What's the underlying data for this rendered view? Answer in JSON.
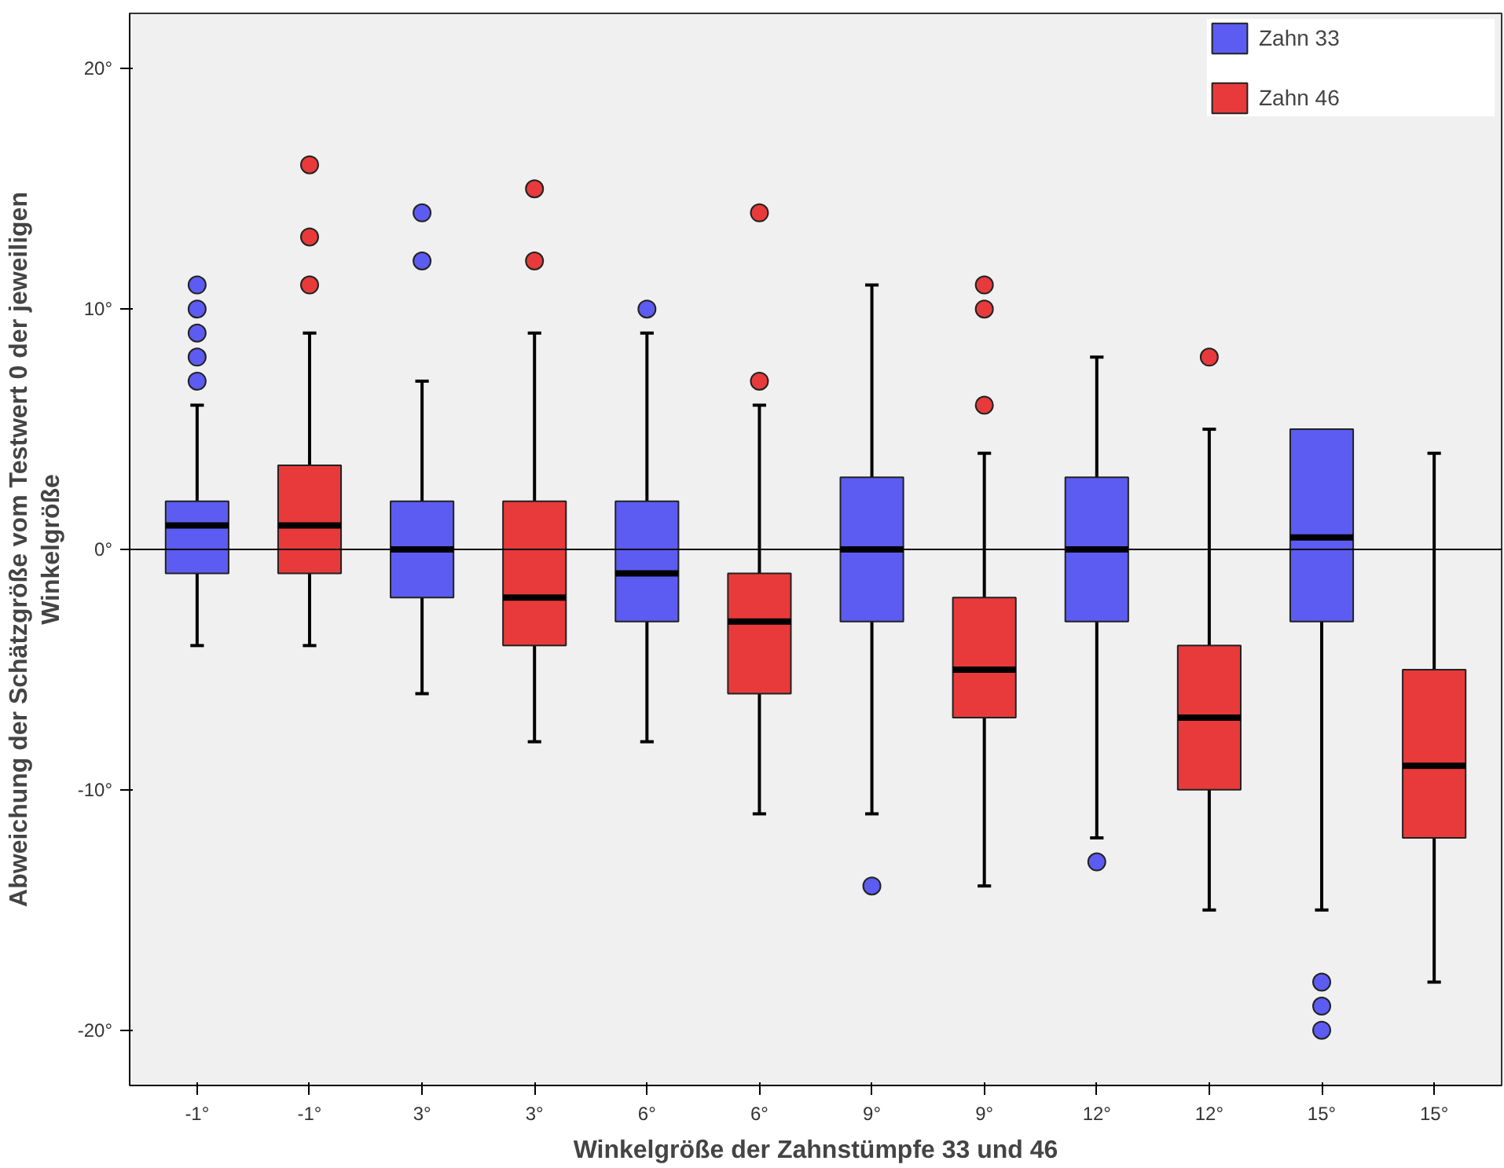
{
  "chart_data": {
    "type": "box",
    "xlabel": "Winkelgröße der Zahnstümpfe 33 und 46",
    "ylabel": "Abweichung der Schätzgröße vom Testwert 0 der jeweiligen\nWinkelgröße",
    "categories": [
      "-1°",
      "-1°",
      "3°",
      "3°",
      "6°",
      "6°",
      "9°",
      "9°",
      "12°",
      "12°",
      "15°",
      "15°"
    ],
    "ylim": [
      -22.3,
      22.3
    ],
    "yticks": [
      {
        "value": -20,
        "label": "-20°"
      },
      {
        "value": -10,
        "label": "-10°"
      },
      {
        "value": 0,
        "label": "0°"
      },
      {
        "value": 10,
        "label": "10°"
      },
      {
        "value": 20,
        "label": "20°"
      }
    ],
    "grid": false,
    "legend": "top right",
    "ref_lines": [
      {
        "axis": "y",
        "value": 0,
        "color": "#000000"
      }
    ],
    "series": [
      {
        "name": "Zahn 33",
        "color": "#5c5cf2",
        "boxes": [
          {
            "low": -4,
            "q1": -1,
            "median": 1,
            "q3": 2,
            "high": 6,
            "outliers": [
              7,
              8,
              9,
              10,
              11
            ]
          },
          null,
          {
            "low": -6,
            "q1": -2,
            "median": 0,
            "q3": 2,
            "high": 7,
            "outliers": [
              12,
              14
            ]
          },
          null,
          {
            "low": -8,
            "q1": -3,
            "median": -1,
            "q3": 2,
            "high": 9,
            "outliers": [
              10
            ]
          },
          null,
          {
            "low": -11,
            "q1": -3,
            "median": 0,
            "q3": 3,
            "high": 11,
            "outliers": [
              -14
            ]
          },
          null,
          {
            "low": -12,
            "q1": -3,
            "median": 0,
            "q3": 3,
            "high": 8,
            "outliers": [
              -13
            ]
          },
          null,
          {
            "low": -15,
            "q1": -3,
            "median": 0.5,
            "q3": 5,
            "high": 5,
            "outliers": [
              -18,
              -19,
              -20
            ]
          },
          null
        ]
      },
      {
        "name": "Zahn 46",
        "color": "#e83a3a",
        "boxes": [
          null,
          {
            "low": -4,
            "q1": -1,
            "median": 1,
            "q3": 3.5,
            "high": 9,
            "outliers": [
              11,
              13,
              16
            ]
          },
          null,
          {
            "low": -8,
            "q1": -4,
            "median": -2,
            "q3": 2,
            "high": 9,
            "outliers": [
              12,
              15
            ]
          },
          null,
          {
            "low": -11,
            "q1": -6,
            "median": -3,
            "q3": -1,
            "high": 6,
            "outliers": [
              7,
              14
            ]
          },
          null,
          {
            "low": -14,
            "q1": -7,
            "median": -5,
            "q3": -2,
            "high": 4,
            "outliers": [
              6,
              10,
              11
            ]
          },
          null,
          {
            "low": -15,
            "q1": -10,
            "median": -7,
            "q3": -4,
            "high": 5,
            "outliers": [
              8
            ]
          },
          null,
          {
            "low": -18,
            "q1": -12,
            "median": -9,
            "q3": -5,
            "high": 4
          }
        ]
      }
    ]
  }
}
